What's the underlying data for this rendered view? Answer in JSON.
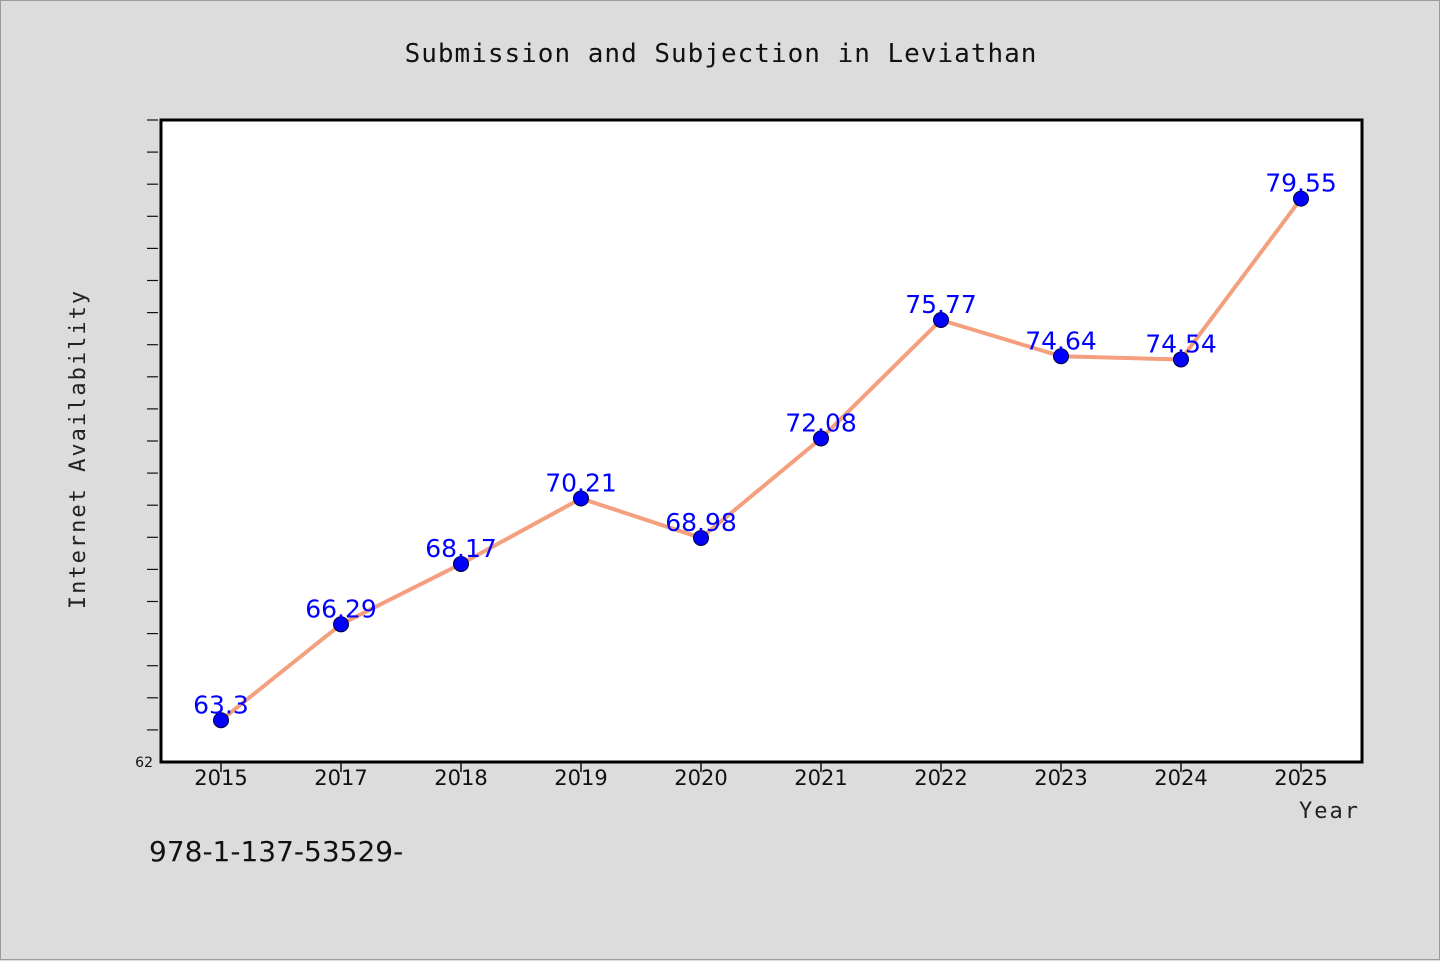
{
  "colors": {
    "background": "#dcdcdc",
    "plot_background": "#ffffff",
    "line": "#f4a07e",
    "marker": "#0000ff",
    "data_label": "#0000ff"
  },
  "footer_text": "978-1-137-53529-",
  "chart_data": {
    "type": "line",
    "title": "Submission and Subjection in Leviathan",
    "xlabel": "Year",
    "ylabel": "Internet Availability",
    "categories": [
      "2015",
      "2017",
      "2018",
      "2019",
      "2020",
      "2021",
      "2022",
      "2023",
      "2024",
      "2025"
    ],
    "series": [
      {
        "values": [
          63.3,
          66.29,
          68.17,
          70.21,
          68.98,
          72.08,
          75.77,
          74.64,
          74.54,
          79.55
        ],
        "labels": [
          "63.3",
          "66.29",
          "68.17",
          "70.21",
          "68.98",
          "72.08",
          "75.77",
          "74.64",
          "74.54",
          "79.55"
        ]
      }
    ],
    "ylim": [
      62,
      82
    ],
    "y_tick_labels": [
      "62"
    ],
    "grid": false,
    "legend": "none"
  }
}
